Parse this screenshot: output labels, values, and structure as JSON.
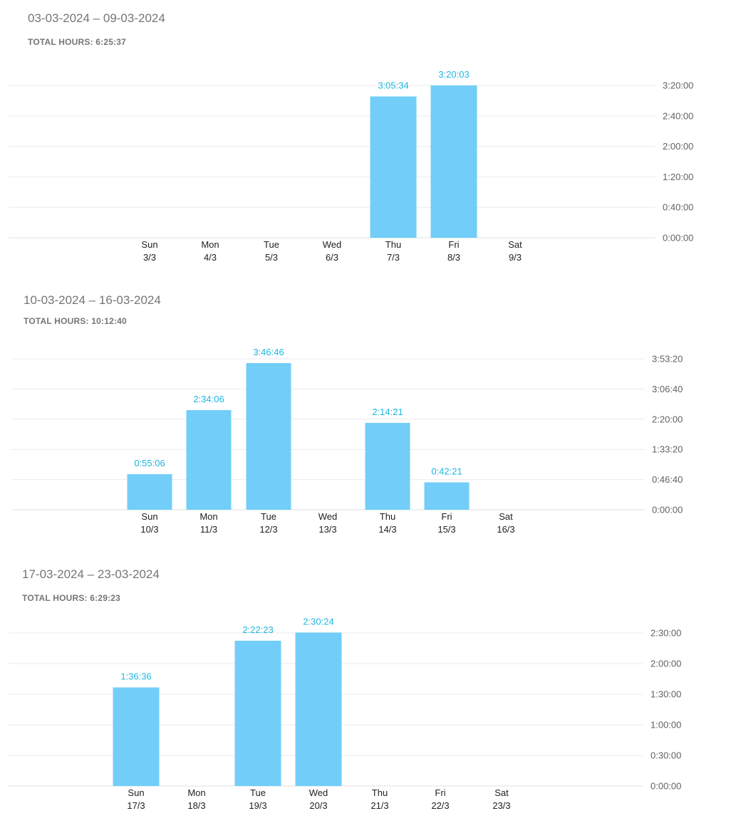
{
  "theme": {
    "bar_color": "#72CEF8",
    "value_label_color": "#1EB6E0",
    "grid_color": "#EBEBEB",
    "axis_text_color": "#616161",
    "day_text_color": "#212121"
  },
  "weeks": [
    {
      "range": "03-03-2024 – 09-03-2024",
      "total": "TOTAL HOURS: 6:25:37",
      "chart_data": {
        "type": "bar",
        "categories": [
          "Sun",
          "Mon",
          "Tue",
          "Wed",
          "Thu",
          "Fri",
          "Sat"
        ],
        "dates": [
          "3/3",
          "4/3",
          "5/3",
          "6/3",
          "7/3",
          "8/3",
          "9/3"
        ],
        "values_seconds": [
          0,
          0,
          0,
          0,
          11134,
          12003,
          0
        ],
        "value_labels": [
          "",
          "",
          "",
          "",
          "3:05:34",
          "3:20:03",
          ""
        ],
        "y_ticks": [
          "0:00:00",
          "0:40:00",
          "1:20:00",
          "2:00:00",
          "2:40:00",
          "3:20:00"
        ],
        "y_tick_seconds": [
          0,
          2400,
          4800,
          7200,
          9600,
          12000
        ],
        "ylim_seconds": [
          0,
          12000
        ]
      }
    },
    {
      "range": "10-03-2024 – 16-03-2024",
      "total": "TOTAL HOURS: 10:12:40",
      "chart_data": {
        "type": "bar",
        "categories": [
          "Sun",
          "Mon",
          "Tue",
          "Wed",
          "Thu",
          "Fri",
          "Sat"
        ],
        "dates": [
          "10/3",
          "11/3",
          "12/3",
          "13/3",
          "14/3",
          "15/3",
          "16/3"
        ],
        "values_seconds": [
          3306,
          9246,
          13606,
          0,
          8061,
          2541,
          0
        ],
        "value_labels": [
          "0:55:06",
          "2:34:06",
          "3:46:46",
          "",
          "2:14:21",
          "0:42:21",
          ""
        ],
        "y_ticks": [
          "0:00:00",
          "0:46:40",
          "1:33:20",
          "2:20:00",
          "3:06:40",
          "3:53:20"
        ],
        "y_tick_seconds": [
          0,
          2800,
          5600,
          8400,
          11200,
          14000
        ],
        "ylim_seconds": [
          0,
          14000
        ]
      }
    },
    {
      "range": "17-03-2024 – 23-03-2024",
      "total": "TOTAL HOURS: 6:29:23",
      "chart_data": {
        "type": "bar",
        "categories": [
          "Sun",
          "Mon",
          "Tue",
          "Wed",
          "Thu",
          "Fri",
          "Sat"
        ],
        "dates": [
          "17/3",
          "18/3",
          "19/3",
          "20/3",
          "21/3",
          "22/3",
          "23/3"
        ],
        "values_seconds": [
          5796,
          0,
          8543,
          9024,
          0,
          0,
          0
        ],
        "value_labels": [
          "1:36:36",
          "",
          "2:22:23",
          "2:30:24",
          "",
          "",
          ""
        ],
        "y_ticks": [
          "0:00:00",
          "0:30:00",
          "1:00:00",
          "1:30:00",
          "2:00:00",
          "2:30:00"
        ],
        "y_tick_seconds": [
          0,
          1800,
          3600,
          5400,
          7200,
          9000
        ],
        "ylim_seconds": [
          0,
          9000
        ]
      }
    }
  ]
}
